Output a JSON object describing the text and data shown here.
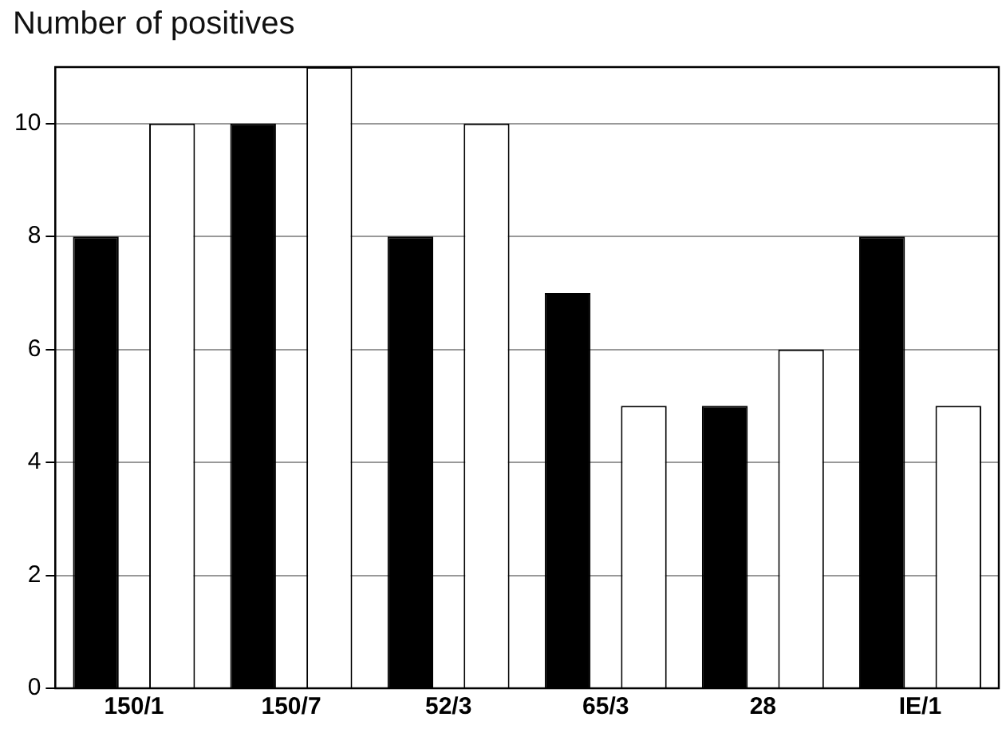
{
  "chart_data": {
    "type": "bar",
    "title": "Number of positives",
    "categories": [
      "150/1",
      "150/7",
      "52/3",
      "65/3",
      "28",
      "IE/1"
    ],
    "series": [
      {
        "color": "#000000",
        "values": [
          8,
          10,
          8,
          7,
          5,
          8
        ]
      },
      {
        "color": "#ffffff",
        "values": [
          10,
          11,
          10,
          5,
          6,
          5
        ]
      }
    ],
    "ylim": [
      0,
      11
    ],
    "yticks": [
      0,
      2,
      4,
      6,
      8,
      10
    ],
    "grid": "y",
    "legend": false
  }
}
